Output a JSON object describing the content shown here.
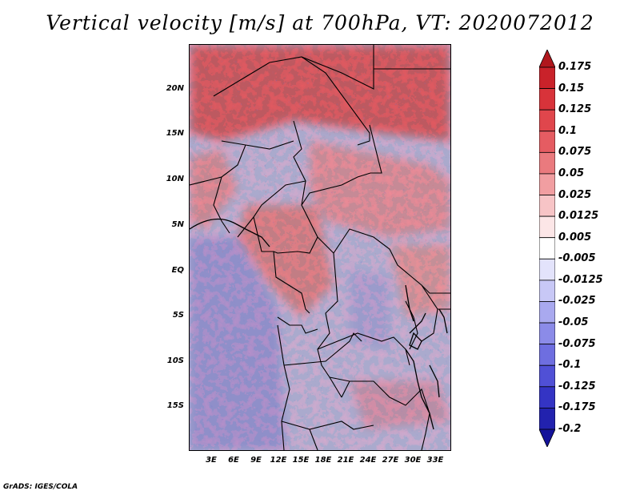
{
  "title": "Vertical velocity [m/s] at 700hPa, VT: 2020072012",
  "credit": "GrADS: IGES/COLA",
  "map": {
    "lat_labels": [
      "20N",
      "15N",
      "10N",
      "5N",
      "EQ",
      "5S",
      "10S",
      "15S"
    ],
    "lon_labels": [
      "3E",
      "6E",
      "9E",
      "12E",
      "15E",
      "18E",
      "21E",
      "24E",
      "27E",
      "30E",
      "33E"
    ],
    "extent": {
      "lon": [
        0,
        35
      ],
      "lat": [
        -20,
        25
      ]
    },
    "variable": "vertical velocity",
    "units": "m/s",
    "level": "700hPa",
    "valid_time": "2020072012"
  },
  "colorbar": {
    "labels": [
      "0.175",
      "0.15",
      "0.125",
      "0.1",
      "0.075",
      "0.05",
      "0.025",
      "0.0125",
      "0.005",
      "-0.005",
      "-0.0125",
      "-0.025",
      "-0.05",
      "-0.075",
      "-0.1",
      "-0.125",
      "-0.175",
      "-0.2"
    ],
    "colors": [
      "#b0171d",
      "#c9222a",
      "#d8333a",
      "#e0464c",
      "#e55c62",
      "#ea7a7e",
      "#f19ea1",
      "#f7c4c6",
      "#fce6e7",
      "#ffffff",
      "#e3e3fb",
      "#c8c8f6",
      "#a9a9ef",
      "#8b8be8",
      "#6e6ee0",
      "#5050d6",
      "#3434c4",
      "#2222ae",
      "#14129a"
    ]
  }
}
